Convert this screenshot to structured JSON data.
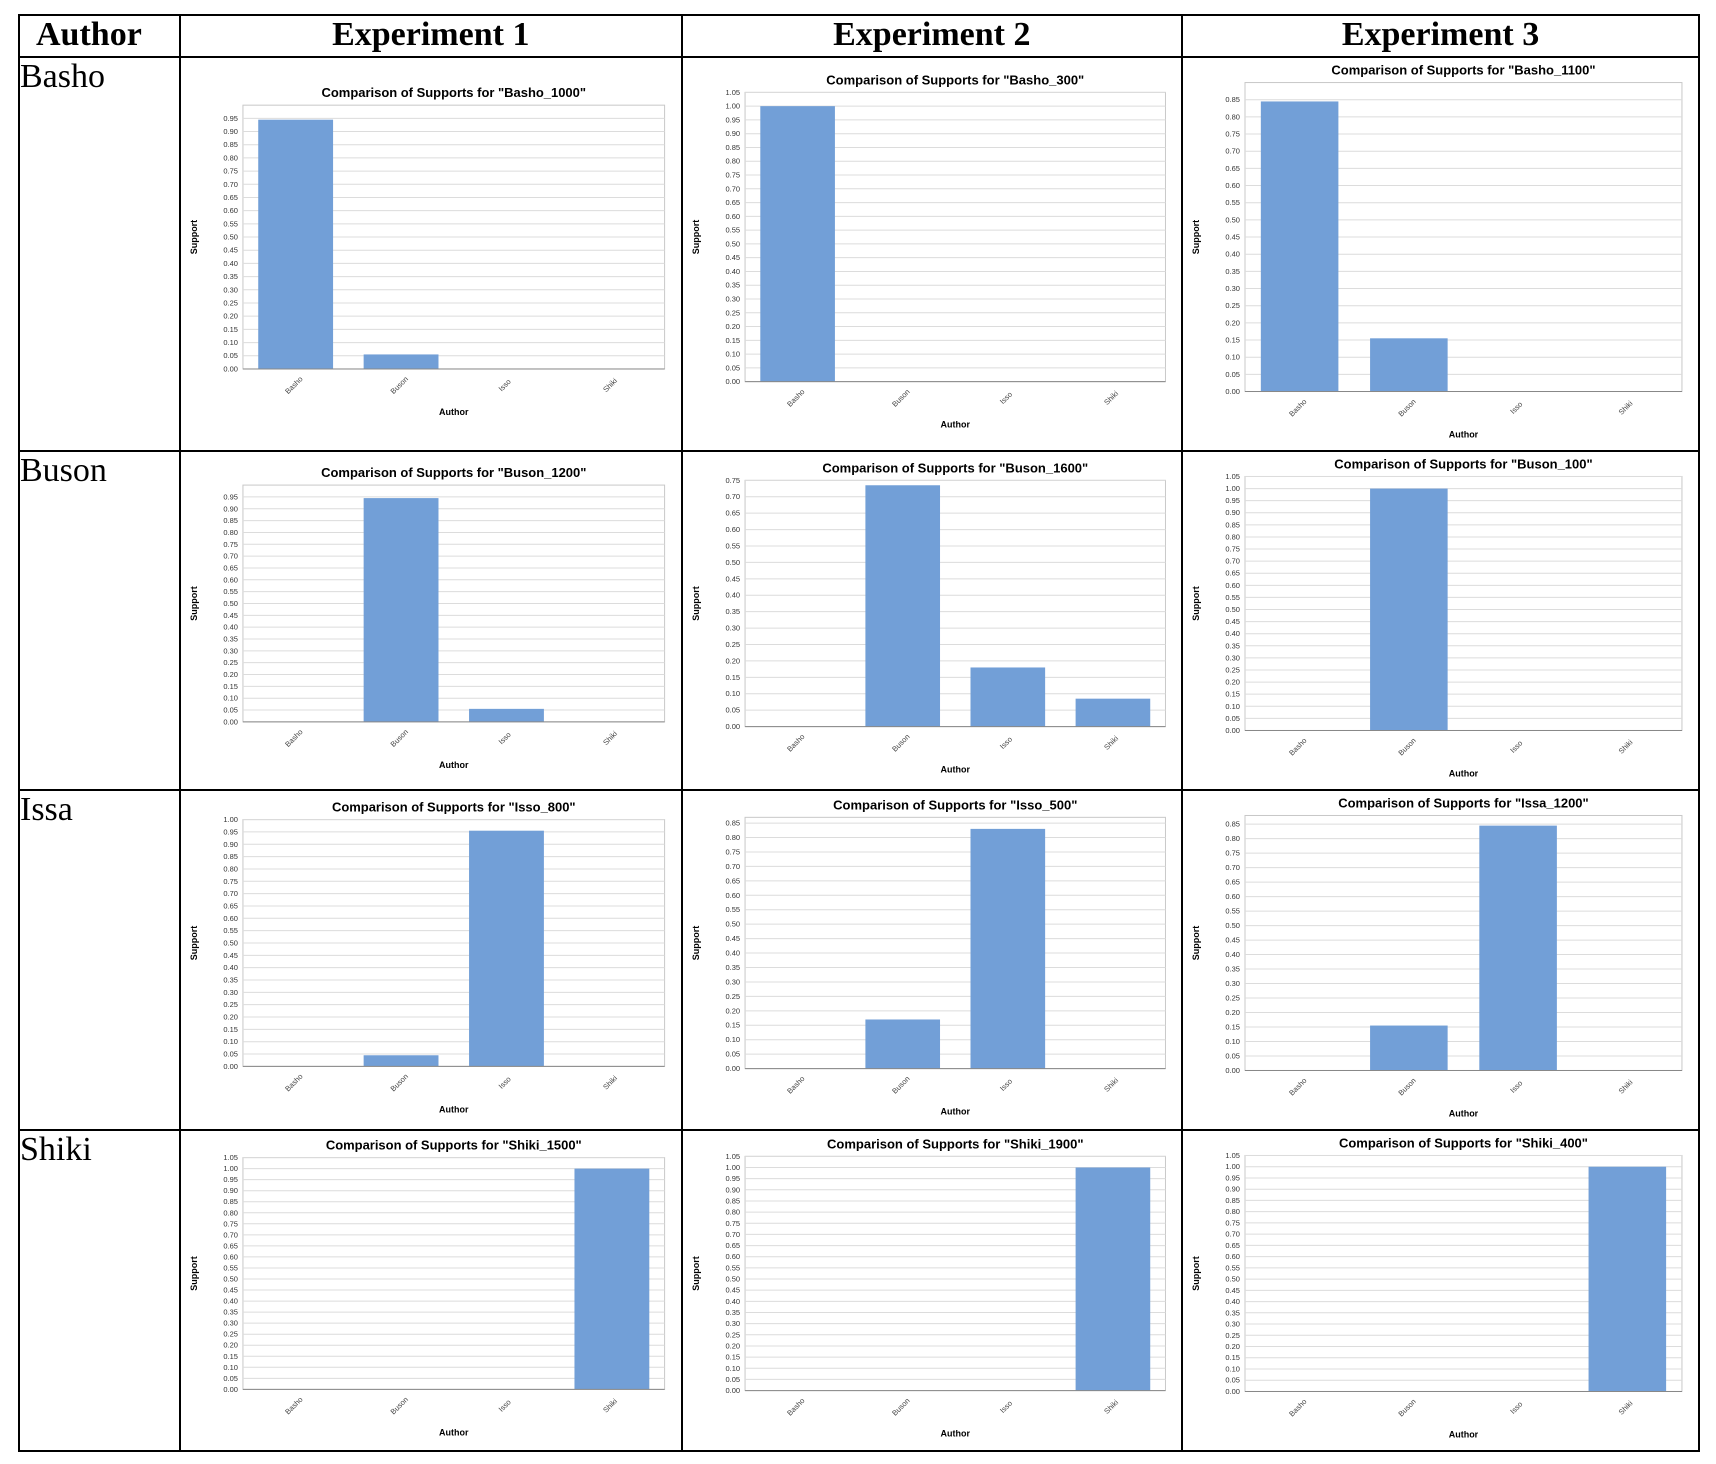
{
  "header": {
    "author_col": "Author",
    "experiments": [
      "Experiment 1",
      "Experiment 2",
      "Experiment 3"
    ]
  },
  "rows": [
    {
      "author": "Basho"
    },
    {
      "author": "Buson"
    },
    {
      "author": "Issa"
    },
    {
      "author": "Shiki"
    }
  ],
  "colors": {
    "bar": "#729fd7",
    "grid": "#dcdcdc",
    "axis": "#888888",
    "text": "#222222"
  },
  "chart_data": [
    {
      "type": "bar",
      "title": "Comparison of Supports for \"Basho_1000\"",
      "xlabel": "Author",
      "ylabel": "Support",
      "categories": [
        "Basho",
        "Buson",
        "Isso",
        "Shiki"
      ],
      "values": [
        0.945,
        0.055,
        0,
        0
      ],
      "ylim": [
        0,
        1.0
      ],
      "yticks_max": 0.95,
      "grid": true
    },
    {
      "type": "bar",
      "title": "Comparison of Supports for \"Basho_300\"",
      "xlabel": "Author",
      "ylabel": "Support",
      "categories": [
        "Basho",
        "Buson",
        "Isso",
        "Shiki"
      ],
      "values": [
        1.0,
        0,
        0,
        0
      ],
      "ylim": [
        0,
        1.05
      ],
      "yticks_max": 1.05,
      "grid": true
    },
    {
      "type": "bar",
      "title": "Comparison of Supports for \"Basho_1100\"",
      "xlabel": "Author",
      "ylabel": "Support",
      "categories": [
        "Basho",
        "Buson",
        "Isso",
        "Shiki"
      ],
      "values": [
        0.845,
        0.155,
        0,
        0
      ],
      "ylim": [
        0,
        0.9
      ],
      "yticks_max": 0.85,
      "grid": true
    },
    {
      "type": "bar",
      "title": "Comparison of Supports for \"Buson_1200\"",
      "xlabel": "Author",
      "ylabel": "Support",
      "categories": [
        "Basho",
        "Buson",
        "Isso",
        "Shiki"
      ],
      "values": [
        0,
        0.945,
        0.055,
        0
      ],
      "ylim": [
        0,
        1.0
      ],
      "yticks_max": 0.95,
      "grid": true
    },
    {
      "type": "bar",
      "title": "Comparison of Supports for \"Buson_1600\"",
      "xlabel": "Author",
      "ylabel": "Support",
      "categories": [
        "Basho",
        "Buson",
        "Isso",
        "Shiki"
      ],
      "values": [
        0,
        0.735,
        0.18,
        0.085
      ],
      "ylim": [
        0,
        0.75
      ],
      "yticks_max": 0.75,
      "grid": true
    },
    {
      "type": "bar",
      "title": "Comparison of Supports for \"Buson_100\"",
      "xlabel": "Author",
      "ylabel": "Support",
      "categories": [
        "Basho",
        "Buson",
        "Isso",
        "Shiki"
      ],
      "values": [
        0,
        1.0,
        0,
        0
      ],
      "ylim": [
        0,
        1.05
      ],
      "yticks_max": 1.05,
      "grid": true
    },
    {
      "type": "bar",
      "title": "Comparison of Supports for \"Isso_800\"",
      "xlabel": "Author",
      "ylabel": "Support",
      "categories": [
        "Basho",
        "Buson",
        "Isso",
        "Shiki"
      ],
      "values": [
        0,
        0.045,
        0.955,
        0
      ],
      "ylim": [
        0,
        1.0
      ],
      "yticks_max": 1.0,
      "grid": true
    },
    {
      "type": "bar",
      "title": "Comparison of Supports for \"Isso_500\"",
      "xlabel": "Author",
      "ylabel": "Support",
      "categories": [
        "Basho",
        "Buson",
        "Isso",
        "Shiki"
      ],
      "values": [
        0,
        0.17,
        0.83,
        0
      ],
      "ylim": [
        0,
        0.87
      ],
      "yticks_max": 0.85,
      "grid": true
    },
    {
      "type": "bar",
      "title": "Comparison of Supports for \"Issa_1200\"",
      "xlabel": "Author",
      "ylabel": "Support",
      "categories": [
        "Basho",
        "Buson",
        "Isso",
        "Shiki"
      ],
      "values": [
        0,
        0.155,
        0.845,
        0
      ],
      "ylim": [
        0,
        0.88
      ],
      "yticks_max": 0.85,
      "grid": true
    },
    {
      "type": "bar",
      "title": "Comparison of Supports for \"Shiki_1500\"",
      "xlabel": "Author",
      "ylabel": "Support",
      "categories": [
        "Basho",
        "Buson",
        "Isso",
        "Shiki"
      ],
      "values": [
        0,
        0,
        0,
        1.0
      ],
      "ylim": [
        0,
        1.05
      ],
      "yticks_max": 1.05,
      "grid": true
    },
    {
      "type": "bar",
      "title": "Comparison of Supports for \"Shiki_1900\"",
      "xlabel": "Author",
      "ylabel": "Support",
      "categories": [
        "Basho",
        "Buson",
        "Isso",
        "Shiki"
      ],
      "values": [
        0,
        0,
        0,
        1.0
      ],
      "ylim": [
        0,
        1.05
      ],
      "yticks_max": 1.05,
      "grid": true
    },
    {
      "type": "bar",
      "title": "Comparison of Supports for \"Shiki_400\"",
      "xlabel": "Author",
      "ylabel": "Support",
      "categories": [
        "Basho",
        "Buson",
        "Isso",
        "Shiki"
      ],
      "values": [
        0,
        0,
        0,
        1.0
      ],
      "ylim": [
        0,
        1.05
      ],
      "yticks_max": 1.05,
      "grid": true
    }
  ]
}
